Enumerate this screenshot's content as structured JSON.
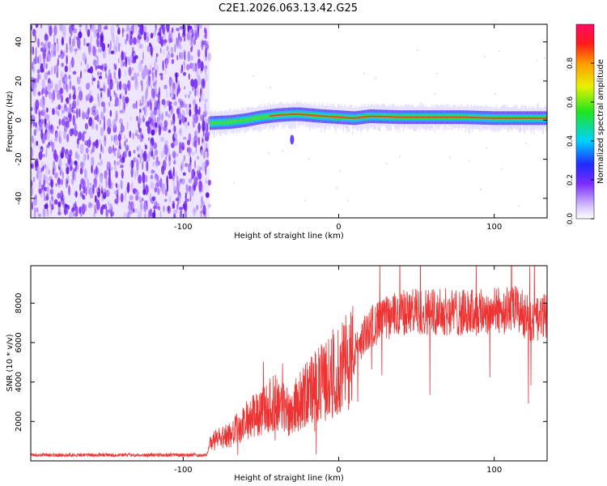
{
  "title": "C2E1.2026.063.13.42.G25",
  "chart_data": [
    {
      "type": "heatmap",
      "xlabel": "Height of straight line (km)",
      "ylabel": "Frequency (Hz)",
      "xlim": [
        -198,
        134
      ],
      "ylim": [
        -50,
        49
      ],
      "xticks": [
        -100,
        0,
        100
      ],
      "yticks": [
        -40,
        -20,
        0,
        20,
        40
      ],
      "noise_region_x": [
        -198,
        -83
      ],
      "signal_track": {
        "x": [
          -83,
          -70,
          -60,
          -50,
          -40,
          -30,
          -25,
          -10,
          0,
          10,
          20,
          40,
          60,
          80,
          100,
          120,
          134
        ],
        "frequency": [
          -1.5,
          -1,
          0,
          1.5,
          2.5,
          3,
          3,
          2,
          1.5,
          1,
          2,
          1.5,
          1.5,
          1.5,
          1,
          1,
          1
        ]
      },
      "colorbar": {
        "label": "Normalized spectral amplitude",
        "range": [
          0,
          1
        ],
        "ticks": [
          "0.0",
          "0.2",
          "0.4",
          "0.6",
          "0.8"
        ]
      }
    },
    {
      "type": "line",
      "xlabel": "Height of straight line (km)",
      "ylabel": "SNR (10 * v/v)",
      "xlim": [
        -198,
        134
      ],
      "ylim": [
        0,
        9900
      ],
      "xticks": [
        -100,
        0,
        100
      ],
      "yticks": [
        2000,
        4000,
        6000,
        8000
      ],
      "series": [
        {
          "name": "SNR",
          "color": "#ee3333",
          "x": [
            -198,
            -150,
            -100,
            -85,
            -82,
            -70,
            -60,
            -50,
            -40,
            -32,
            -25,
            -20,
            -10,
            0,
            10,
            20,
            30,
            40,
            60,
            80,
            100,
            115,
            125,
            134
          ],
          "y": [
            300,
            300,
            300,
            300,
            1000,
            1300,
            2000,
            2500,
            3000,
            2500,
            3000,
            3500,
            4000,
            4500,
            5500,
            6800,
            7200,
            7500,
            7600,
            7500,
            7600,
            7700,
            7000,
            7400
          ]
        }
      ]
    }
  ]
}
